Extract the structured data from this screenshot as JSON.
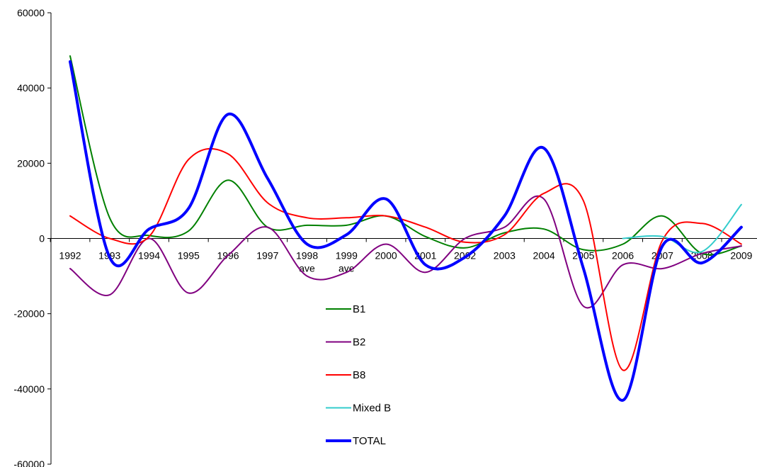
{
  "chart_data": {
    "type": "line",
    "x": [
      "1992",
      "1993",
      "1994",
      "1995",
      "1996",
      "1997",
      "1998 ave",
      "1999 ave",
      "2000",
      "2001",
      "2002",
      "2003",
      "2004",
      "2005",
      "2006",
      "2007",
      "2008",
      "2009"
    ],
    "ylim": [
      -60000,
      60000
    ],
    "yticks": [
      60000,
      40000,
      20000,
      0,
      -20000,
      -40000,
      -60000
    ],
    "grid": false,
    "legend_position": "center-bottom",
    "series": [
      {
        "name": "B1",
        "color": "#008000",
        "width": 2,
        "values": [
          48500,
          5500,
          800,
          2000,
          15500,
          3000,
          3500,
          3500,
          6000,
          500,
          -2500,
          1500,
          2500,
          -3000,
          -1500,
          6000,
          -4000,
          -2000
        ]
      },
      {
        "name": "B2",
        "color": "#800080",
        "width": 2,
        "values": [
          -8000,
          -15000,
          0,
          -14500,
          -4500,
          3000,
          -10000,
          -9000,
          -1500,
          -9000,
          0,
          3000,
          10500,
          -18000,
          -7000,
          -8000,
          -4000,
          -2000
        ]
      },
      {
        "name": "B8",
        "color": "#ff0000",
        "width": 2,
        "values": [
          6000,
          0,
          500,
          21000,
          22500,
          9500,
          5500,
          5500,
          6000,
          3000,
          -1000,
          1000,
          12000,
          10000,
          -35000,
          -500,
          4000,
          -1500
        ]
      },
      {
        "name": "Mixed B",
        "color": "#33cccc",
        "width": 2,
        "values": [
          null,
          null,
          null,
          null,
          null,
          null,
          null,
          null,
          null,
          null,
          null,
          null,
          null,
          null,
          0,
          500,
          -3500,
          9000
        ]
      },
      {
        "name": "TOTAL",
        "color": "#0000ff",
        "width": 4,
        "values": [
          47000,
          -5000,
          2500,
          8000,
          33000,
          16000,
          -1500,
          1000,
          10500,
          -7000,
          -5000,
          6000,
          24000,
          -8000,
          -43000,
          -2000,
          -6500,
          3000
        ]
      }
    ]
  }
}
